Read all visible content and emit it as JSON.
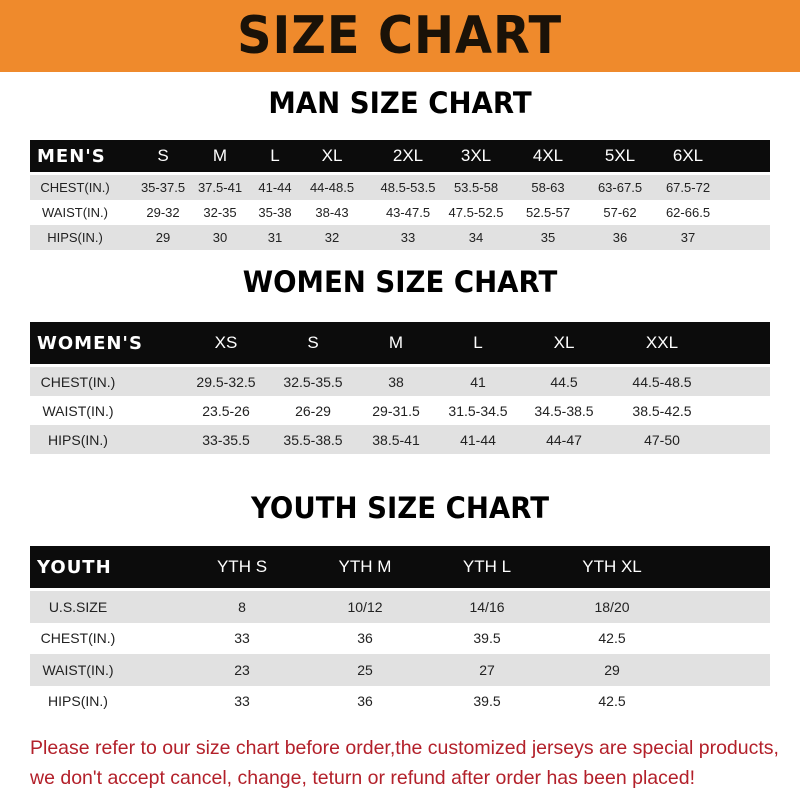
{
  "banner": {
    "title": "SIZE CHART",
    "color": "#ef8a2c"
  },
  "men": {
    "title": "MAN SIZE CHART",
    "header": [
      "MEN'S",
      "S",
      "M",
      "L",
      "XL",
      "2XL",
      "3XL",
      "4XL",
      "5XL",
      "6XL"
    ],
    "rows": [
      [
        "CHEST(IN.)",
        "35-37.5",
        "37.5-41",
        "41-44",
        "44-48.5",
        "48.5-53.5",
        "53.5-58",
        "58-63",
        "63-67.5",
        "67.5-72"
      ],
      [
        "WAIST(IN.)",
        "29-32",
        "32-35",
        "35-38",
        "38-43",
        "43-47.5",
        "47.5-52.5",
        "52.5-57",
        "57-62",
        "62-66.5"
      ],
      [
        "HIPS(IN.)",
        "29",
        "30",
        "31",
        "32",
        "33",
        "34",
        "35",
        "36",
        "37"
      ]
    ]
  },
  "women": {
    "title": "WOMEN SIZE CHART",
    "header": [
      "WOMEN'S",
      "XS",
      "S",
      "M",
      "L",
      "XL",
      "XXL"
    ],
    "rows": [
      [
        "CHEST(IN.)",
        "29.5-32.5",
        "32.5-35.5",
        "38",
        "41",
        "44.5",
        "44.5-48.5"
      ],
      [
        "WAIST(IN.)",
        "23.5-26",
        "26-29",
        "29-31.5",
        "31.5-34.5",
        "34.5-38.5",
        "38.5-42.5"
      ],
      [
        "HIPS(IN.)",
        "33-35.5",
        "35.5-38.5",
        "38.5-41",
        "41-44",
        "44-47",
        "47-50"
      ]
    ]
  },
  "youth": {
    "title": "YOUTH SIZE CHART",
    "header": [
      "YOUTH",
      "YTH S",
      "YTH M",
      "YTH L",
      "YTH XL"
    ],
    "rows": [
      [
        "U.S.SIZE",
        "8",
        "10/12",
        "14/16",
        "18/20"
      ],
      [
        "CHEST(IN.)",
        "33",
        "36",
        "39.5",
        "42.5"
      ],
      [
        "WAIST(IN.)",
        "23",
        "25",
        "27",
        "29"
      ],
      [
        "HIPS(IN.)",
        "33",
        "36",
        "39.5",
        "42.5"
      ]
    ]
  },
  "note": {
    "line1": "Please refer to our size chart before order,the customized jerseys are special products,",
    "line2": "we don't accept cancel, change, teturn or refund after order has been placed!",
    "color": "#b3202a"
  }
}
